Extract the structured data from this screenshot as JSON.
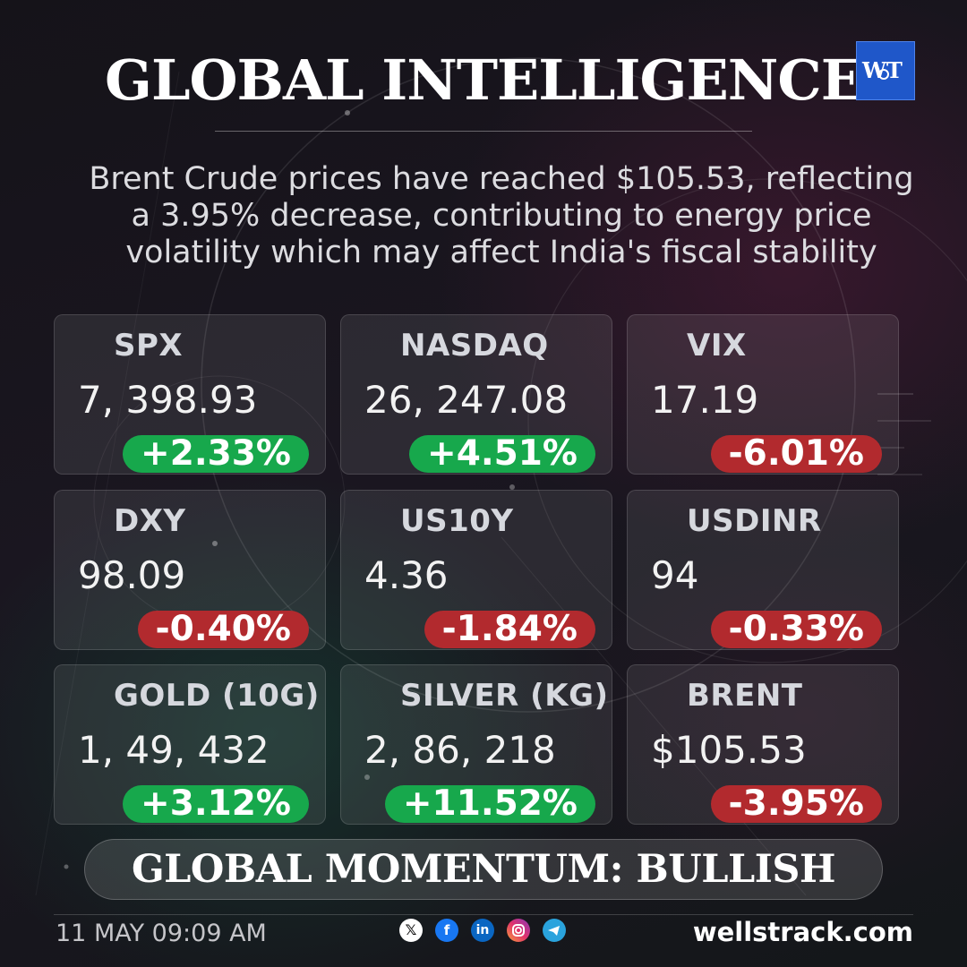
{
  "header": {
    "title": "GLOBAL INTELLIGENCE",
    "logo_text": "WT"
  },
  "headline": {
    "line1": "Brent Crude prices have reached $105.53, reflecting",
    "line2": "a 3.95% decrease, contributing to energy price",
    "line3": "volatility which may affect India's fiscal stability"
  },
  "tickers": [
    {
      "symbol": "SPX",
      "value": "7, 398.93",
      "change": "+2.33%",
      "direction": "up"
    },
    {
      "symbol": "NASDAQ",
      "value": "26, 247.08",
      "change": "+4.51%",
      "direction": "up"
    },
    {
      "symbol": "VIX",
      "value": "17.19",
      "change": "-6.01%",
      "direction": "down"
    },
    {
      "symbol": "DXY",
      "value": "98.09",
      "change": "-0.40%",
      "direction": "down"
    },
    {
      "symbol": "US10Y",
      "value": "4.36",
      "change": "-1.84%",
      "direction": "down"
    },
    {
      "symbol": "USDINR",
      "value": "94",
      "change": "-0.33%",
      "direction": "down"
    },
    {
      "symbol": "GOLD (10G)",
      "value": "1, 49, 432",
      "change": "+3.12%",
      "direction": "up"
    },
    {
      "symbol": "SILVER (KG)",
      "value": "2, 86, 218",
      "change": "+11.52%",
      "direction": "up"
    },
    {
      "symbol": "BRENT",
      "value": "$105.53",
      "change": "-3.95%",
      "direction": "down"
    }
  ],
  "momentum": {
    "label": "GLOBAL MOMENTUM: BULLISH"
  },
  "footer": {
    "timestamp": "11 MAY 09:09 AM",
    "website": "wellstrack.com",
    "social_icons": [
      "x-icon",
      "facebook-icon",
      "linkedin-icon",
      "instagram-icon",
      "telegram-icon"
    ]
  },
  "colors": {
    "positive": "#17a84c",
    "negative": "#b22a2e",
    "logo_blue": "#1f57c9"
  }
}
